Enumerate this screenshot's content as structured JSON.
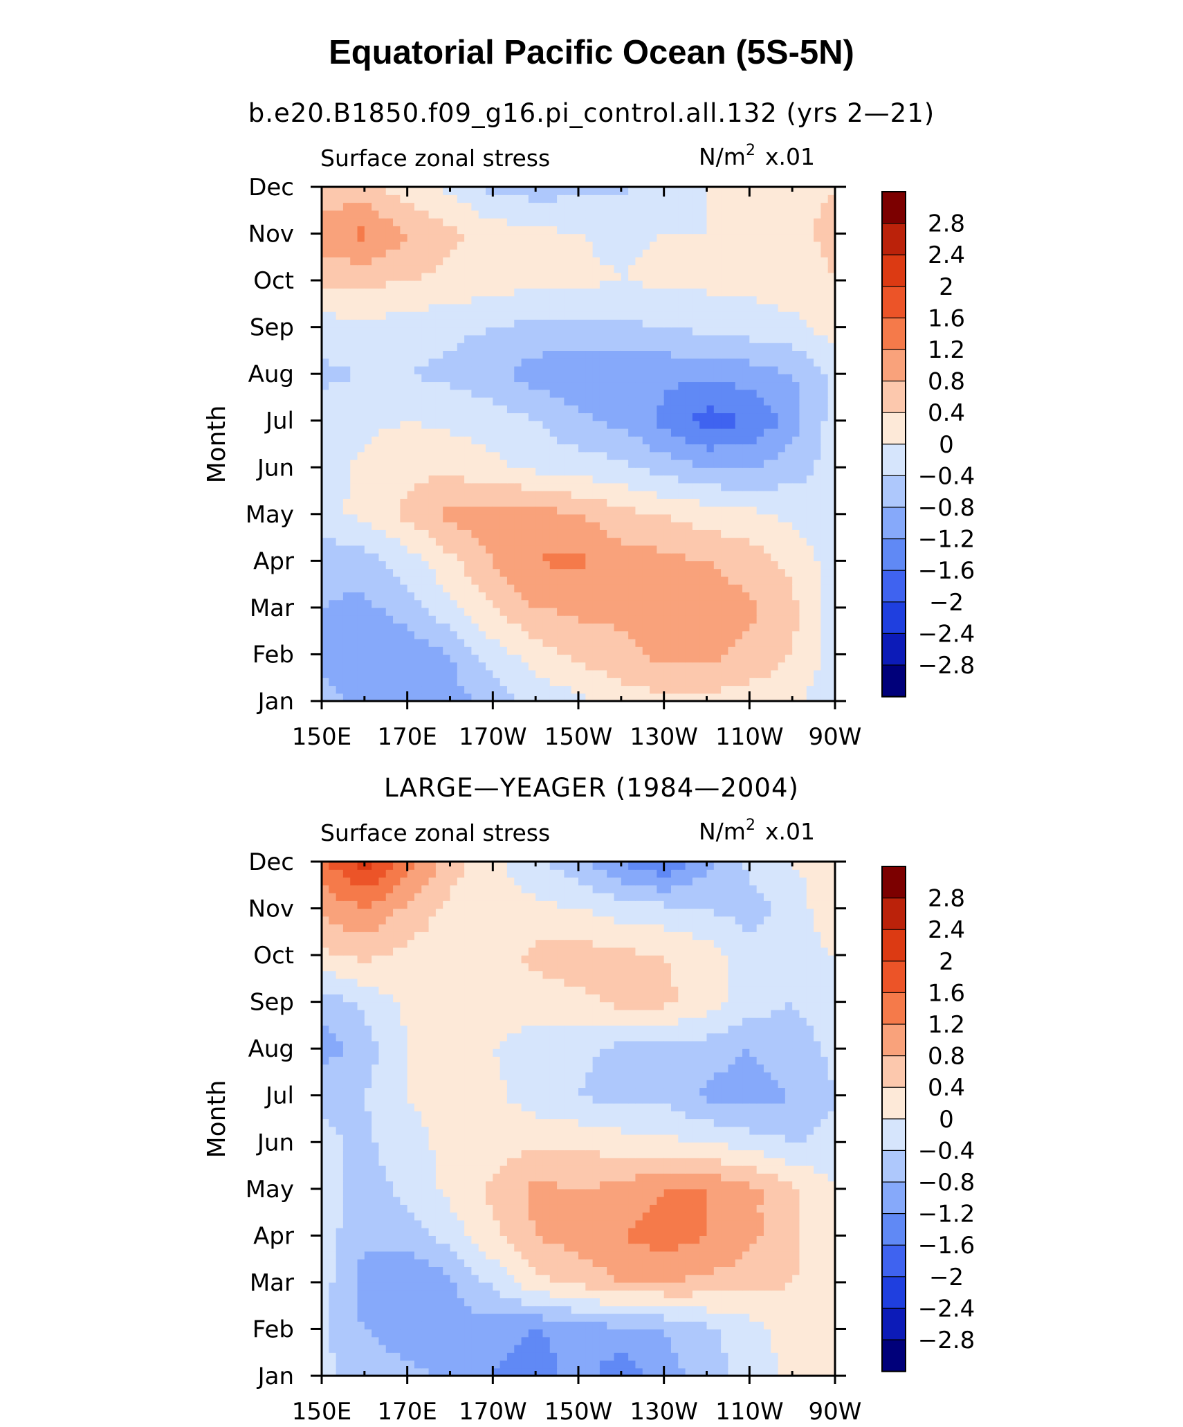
{
  "title": "Equatorial Pacific Ocean (5S-5N)",
  "panels": [
    {
      "subtitle": "b.e20.B1850.f09_g16.pi_control.all.132 (yrs 2—21)",
      "left_label": "Surface zonal stress",
      "units_base": "N/m",
      "units_exp": "2",
      "units_scale": "x.01"
    },
    {
      "subtitle": "LARGE—YEAGER (1984—2004)",
      "left_label": "Surface zonal stress",
      "units_base": "N/m",
      "units_exp": "2",
      "units_scale": "x.01"
    }
  ],
  "chart_data": [
    {
      "type": "heatmap",
      "title": "b.e20.B1850.f09_g16.pi_control.all.132 (yrs 2—21)",
      "variable": "Surface zonal stress",
      "units": "N/m² x.01",
      "xlabel": "",
      "ylabel": "Month",
      "x_ticks": [
        "150E",
        "170E",
        "170W",
        "150W",
        "130W",
        "110W",
        "90W"
      ],
      "y_ticks": [
        "Jan",
        "Feb",
        "Mar",
        "Apr",
        "May",
        "Jun",
        "Jul",
        "Aug",
        "Sep",
        "Oct",
        "Nov",
        "Dec"
      ],
      "xlim": [
        150,
        270
      ],
      "grid_lon": [
        150,
        160,
        170,
        180,
        190,
        200,
        210,
        220,
        230,
        240,
        250,
        260,
        270
      ],
      "grid_month": [
        "Jan",
        "Feb",
        "Mar",
        "Apr",
        "May",
        "Jun",
        "Jul",
        "Aug",
        "Sep",
        "Oct",
        "Nov",
        "Dec"
      ],
      "values": [
        [
          -0.6,
          -1.0,
          -1.2,
          -1.0,
          -0.6,
          -0.3,
          -0.1,
          0.2,
          0.3,
          0.3,
          0.2,
          0.1,
          -0.3
        ],
        [
          -0.9,
          -1.2,
          -1.1,
          -0.8,
          -0.2,
          0.2,
          0.5,
          0.7,
          0.9,
          0.9,
          0.7,
          0.4,
          -0.2
        ],
        [
          -0.8,
          -0.9,
          -0.6,
          -0.1,
          0.4,
          0.8,
          0.9,
          0.9,
          1.0,
          1.0,
          0.9,
          0.5,
          -0.2
        ],
        [
          -0.7,
          -0.6,
          -0.2,
          0.3,
          0.8,
          1.2,
          1.3,
          1.0,
          0.9,
          0.8,
          0.6,
          0.3,
          -0.2
        ],
        [
          -0.1,
          0.1,
          0.5,
          0.9,
          1.0,
          1.0,
          0.8,
          0.5,
          0.4,
          0.2,
          0.1,
          -0.1,
          -0.2
        ],
        [
          -0.2,
          0.1,
          0.3,
          0.3,
          0.1,
          -0.1,
          -0.2,
          -0.3,
          -0.6,
          -0.8,
          -0.8,
          -0.6,
          -0.2
        ],
        [
          -0.2,
          -0.1,
          0.0,
          -0.1,
          -0.2,
          -0.4,
          -0.7,
          -0.9,
          -1.3,
          -1.8,
          -1.6,
          -1.0,
          -0.2
        ],
        [
          -0.5,
          -0.4,
          -0.4,
          -0.5,
          -0.7,
          -1.0,
          -1.1,
          -1.1,
          -1.1,
          -1.1,
          -1.0,
          -0.8,
          -0.3
        ],
        [
          -0.2,
          -0.1,
          -0.2,
          -0.3,
          -0.4,
          -0.5,
          -0.5,
          -0.5,
          -0.4,
          -0.3,
          -0.2,
          -0.1,
          0.2
        ],
        [
          0.5,
          0.5,
          0.4,
          0.3,
          0.2,
          0.1,
          0.1,
          0.0,
          0.1,
          0.1,
          0.1,
          0.2,
          0.4
        ],
        [
          1.0,
          1.3,
          0.8,
          0.5,
          0.2,
          0.1,
          0.0,
          -0.1,
          0.0,
          0.0,
          0.1,
          0.3,
          0.5
        ],
        [
          0.6,
          0.5,
          0.2,
          -0.1,
          -0.5,
          -0.6,
          -0.5,
          -0.5,
          -0.2,
          0.0,
          0.1,
          0.3,
          0.4
        ]
      ],
      "colorbar": {
        "ticks": [
          "2.8",
          "2.4",
          "2",
          "1.6",
          "1.2",
          "0.8",
          "0.4",
          "0",
          "−0.4",
          "−0.8",
          "−1.2",
          "−1.6",
          "−2",
          "−2.4",
          "−2.8"
        ],
        "levels": [
          -2.8,
          -2.4,
          -2.0,
          -1.6,
          -1.2,
          -0.8,
          -0.4,
          0,
          0.4,
          0.8,
          1.2,
          1.6,
          2.0,
          2.4,
          2.8
        ],
        "colors": [
          "#00007a",
          "#0c1bb8",
          "#1f3fdf",
          "#3f63f0",
          "#6089f5",
          "#86a9fa",
          "#aec8fc",
          "#d6e5fc",
          "#fde9d8",
          "#fcc8ad",
          "#f9a27b",
          "#f57a4a",
          "#ec5428",
          "#dc3a13",
          "#bb220a",
          "#7c0000"
        ]
      }
    },
    {
      "type": "heatmap",
      "title": "LARGE—YEAGER (1984—2004)",
      "variable": "Surface zonal stress",
      "units": "N/m² x.01",
      "xlabel": "",
      "ylabel": "Month",
      "x_ticks": [
        "150E",
        "170E",
        "170W",
        "150W",
        "130W",
        "110W",
        "90W"
      ],
      "y_ticks": [
        "Jan",
        "Feb",
        "Mar",
        "Apr",
        "May",
        "Jun",
        "Jul",
        "Aug",
        "Sep",
        "Oct",
        "Nov",
        "Dec"
      ],
      "xlim": [
        150,
        270
      ],
      "grid_lon": [
        150,
        160,
        170,
        180,
        190,
        200,
        210,
        220,
        230,
        240,
        250,
        260,
        270
      ],
      "grid_month": [
        "Jan",
        "Feb",
        "Mar",
        "Apr",
        "May",
        "Jun",
        "Jul",
        "Aug",
        "Sep",
        "Oct",
        "Nov",
        "Dec"
      ],
      "values": [
        [
          -0.3,
          -0.6,
          -0.7,
          -0.9,
          -1.2,
          -1.5,
          -1.0,
          -1.5,
          -1.0,
          -0.6,
          -0.2,
          0.1,
          0.2
        ],
        [
          -0.3,
          -0.8,
          -1.0,
          -0.9,
          -1.0,
          -1.2,
          -1.0,
          -0.9,
          -0.8,
          -0.5,
          -0.2,
          0.2,
          0.2
        ],
        [
          -0.2,
          -1.0,
          -1.2,
          -0.9,
          -0.3,
          0.3,
          0.5,
          0.8,
          0.8,
          0.7,
          0.6,
          0.4,
          0.2
        ],
        [
          -0.2,
          -0.7,
          -0.6,
          -0.2,
          0.3,
          0.8,
          1.0,
          1.2,
          1.4,
          1.2,
          0.9,
          0.5,
          0.1
        ],
        [
          -0.2,
          -0.6,
          -0.3,
          0.1,
          0.5,
          0.9,
          0.8,
          0.9,
          1.2,
          1.2,
          0.9,
          0.5,
          0.0
        ],
        [
          -0.3,
          -0.5,
          -0.1,
          0.1,
          0.2,
          0.3,
          0.3,
          0.2,
          0.1,
          0.0,
          -0.2,
          -0.4,
          -0.3
        ],
        [
          -0.5,
          -0.4,
          0.0,
          0.1,
          0.1,
          -0.2,
          -0.4,
          -0.6,
          -0.5,
          -0.9,
          -1.0,
          -0.8,
          -0.4
        ],
        [
          -1.0,
          -0.6,
          0.0,
          0.2,
          0.0,
          -0.2,
          -0.3,
          -0.5,
          -0.5,
          -0.6,
          -0.8,
          -0.6,
          -0.3
        ],
        [
          -0.6,
          -0.3,
          0.1,
          0.2,
          0.2,
          0.2,
          0.3,
          0.5,
          0.5,
          0.2,
          -0.2,
          -0.4,
          -0.2
        ],
        [
          0.3,
          0.5,
          0.3,
          0.1,
          0.2,
          0.5,
          0.6,
          0.5,
          0.4,
          0.2,
          -0.2,
          -0.2,
          0.0
        ],
        [
          0.9,
          1.2,
          0.7,
          0.3,
          0.1,
          0.1,
          0.0,
          -0.2,
          -0.3,
          -0.4,
          -0.6,
          -0.2,
          0.3
        ],
        [
          1.5,
          2.2,
          1.4,
          0.6,
          0.1,
          -0.3,
          -0.7,
          -1.2,
          -1.6,
          -0.9,
          -0.3,
          0.0,
          0.2
        ]
      ],
      "colorbar": {
        "ticks": [
          "2.8",
          "2.4",
          "2",
          "1.6",
          "1.2",
          "0.8",
          "0.4",
          "0",
          "−0.4",
          "−0.8",
          "−1.2",
          "−1.6",
          "−2",
          "−2.4",
          "−2.8"
        ],
        "levels": [
          -2.8,
          -2.4,
          -2.0,
          -1.6,
          -1.2,
          -0.8,
          -0.4,
          0,
          0.4,
          0.8,
          1.2,
          1.6,
          2.0,
          2.4,
          2.8
        ],
        "colors": [
          "#00007a",
          "#0c1bb8",
          "#1f3fdf",
          "#3f63f0",
          "#6089f5",
          "#86a9fa",
          "#aec8fc",
          "#d6e5fc",
          "#fde9d8",
          "#fcc8ad",
          "#f9a27b",
          "#f57a4a",
          "#ec5428",
          "#dc3a13",
          "#bb220a",
          "#7c0000"
        ]
      }
    }
  ]
}
